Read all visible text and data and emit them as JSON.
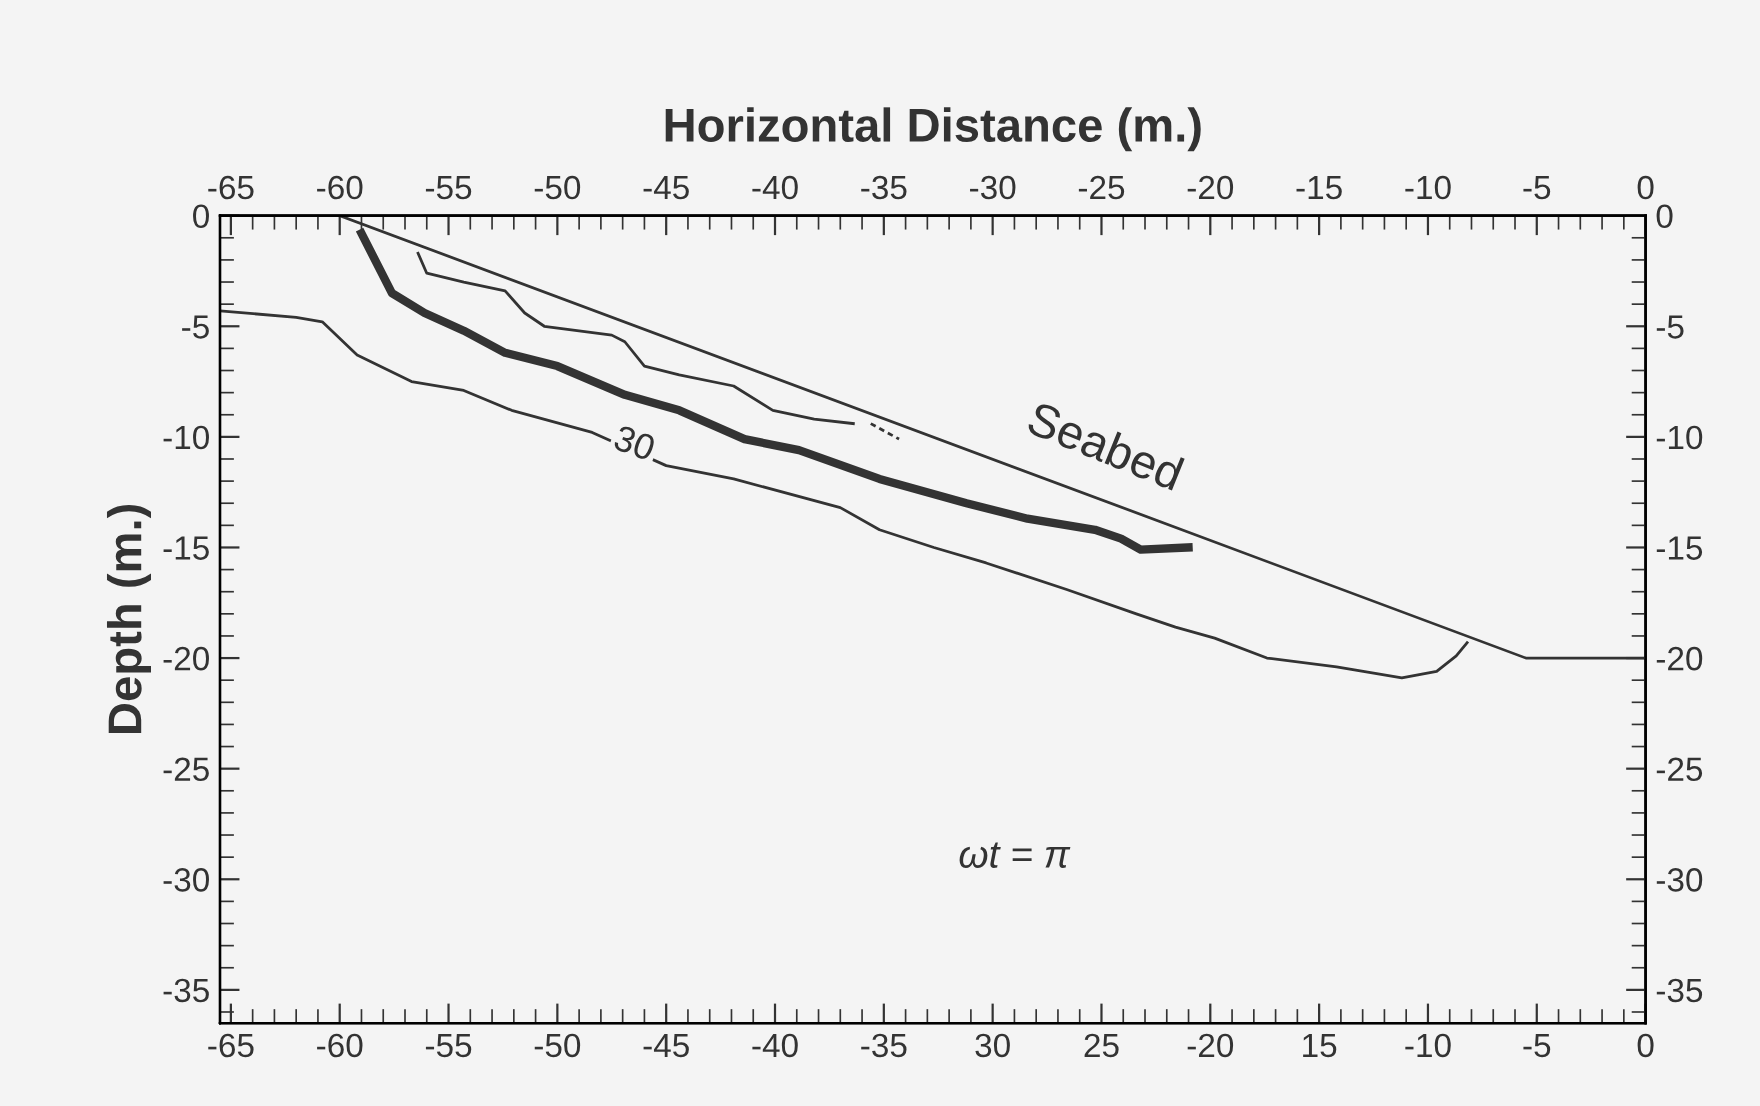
{
  "chart_data": {
    "type": "line",
    "x2label": "Horizontal Distance (m.)",
    "ylabel": "Depth (m.)",
    "xlim": [
      -65.5,
      0
    ],
    "x2lim": [
      -65.5,
      0
    ],
    "ylim": [
      -36.5,
      0
    ],
    "y2lim": [
      -36.5,
      0
    ],
    "xticks": [
      -65,
      -60,
      -55,
      -50,
      -45,
      -40,
      -35,
      {
        "value": -30,
        "label": "30"
      },
      {
        "value": -25,
        "label": "25"
      },
      -20,
      {
        "value": -15,
        "label": "15"
      },
      -10,
      -5,
      0
    ],
    "x2ticks": [
      -65,
      -60,
      -55,
      -50,
      -45,
      -40,
      -35,
      -30,
      -25,
      -20,
      -15,
      -10,
      -5,
      0
    ],
    "yticks": [
      0,
      -5,
      -10,
      -15,
      -20,
      -25,
      -30,
      -35
    ],
    "y2ticks": [
      0,
      -5,
      -10,
      -15,
      -20,
      -25,
      -30,
      -35
    ],
    "grid": false,
    "legend": false,
    "marker": "none",
    "series": [
      {
        "color": "#333333",
        "x": [
          -60,
          -5.5,
          0
        ],
        "values": [
          0,
          -20,
          -20
        ]
      },
      {
        "color": "#333333",
        "x": [
          -65.5,
          -62,
          -60.8,
          -59.2,
          -56.7,
          -54.3,
          -52.1,
          -48.4,
          -45,
          -41.9,
          -37,
          -35.2,
          -32.7,
          -30.3,
          -26.6,
          -23.4,
          -21.6,
          -19.8,
          -17.4,
          -14.2,
          -11.2,
          -9.6,
          -8.7,
          -8.2
        ],
        "values": [
          -4.3,
          -4.6,
          -4.8,
          -6.3,
          -7.5,
          -7.9,
          -8.8,
          -9.8,
          -11.3,
          -11.9,
          -13.2,
          -14.2,
          -15,
          -15.7,
          -16.9,
          -18,
          -18.6,
          -19.1,
          -20,
          -20.4,
          -20.9,
          -20.6,
          -19.9,
          -19.3
        ]
      },
      {
        "color": "#333333",
        "x": [
          -59,
          -57.6,
          -56.1,
          -54.3,
          -52.4,
          -50,
          -46.9,
          -44.4,
          -41.4,
          -38.9,
          -35.2,
          -31.2,
          -28.4,
          -25.3,
          -24.1,
          -23.2,
          -21
        ],
        "values": [
          -0.8,
          -3.5,
          -4.4,
          -5.2,
          -6.2,
          -6.8,
          -8.1,
          -8.8,
          -10.1,
          -10.6,
          -11.9,
          -13,
          -13.7,
          -14.2,
          -14.6,
          -15.1,
          -15
        ]
      },
      {
        "color": "#333333",
        "x": [
          -56.4,
          -56,
          -54.3,
          -52.4,
          -51.5,
          -50.6,
          -47.5,
          -46.9,
          -46,
          -44.4,
          -41.9,
          -40.1,
          -38.2,
          -36.4
        ],
        "values": [
          -1.7,
          -2.6,
          -3,
          -3.4,
          -4.4,
          -5,
          -5.4,
          -5.7,
          -6.8,
          -7.2,
          -7.7,
          -8.8,
          -9.2,
          -9.4
        ]
      },
      {
        "color": "#333333",
        "line_style": "dashed",
        "x": [
          -35.6,
          -34.3
        ],
        "values": [
          -9.4,
          -10.1
        ]
      }
    ],
    "annotations": [
      "Seabed",
      {
        "text": "30",
        "x": -46.5,
        "y": -10.4
      },
      "ωt = π"
    ]
  }
}
